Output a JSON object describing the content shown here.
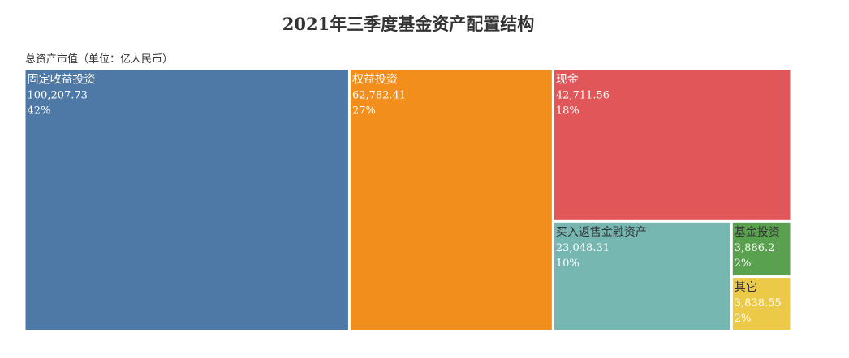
{
  "chart_data": {
    "type": "treemap",
    "title": "2021年三季度基金资产配置结构",
    "subtitle": "总资产市值（单位：亿人民币）",
    "items": [
      {
        "name": "固定收益投资",
        "value": 100207.73,
        "value_label": "100,207.73",
        "percent": "42%",
        "color": "#4e79a7"
      },
      {
        "name": "权益投资",
        "value": 62782.41,
        "value_label": "62,782.41",
        "percent": "27%",
        "color": "#f28e1c"
      },
      {
        "name": "现金",
        "value": 42711.56,
        "value_label": "42,711.56",
        "percent": "18%",
        "color": "#e15759"
      },
      {
        "name": "买入返售金融资产",
        "value": 23048.31,
        "value_label": "23,048.31",
        "percent": "10%",
        "color": "#76b7b2"
      },
      {
        "name": "基金投资",
        "value": 3886.2,
        "value_label": "3,886.2",
        "percent": "2%",
        "color": "#59a14f"
      },
      {
        "name": "其它",
        "value": 3838.55,
        "value_label": "3,838.55",
        "percent": "2%",
        "color": "#edc948"
      }
    ]
  }
}
